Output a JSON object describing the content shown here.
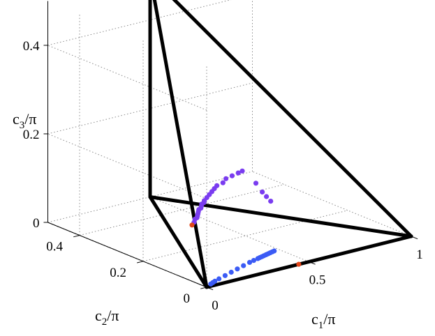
{
  "chart_data": {
    "type": "scatter",
    "title": "",
    "axes": {
      "x": {
        "label_main": "c",
        "label_sub": "1",
        "label_tail": "/π",
        "ticks": [
          "0",
          "0.5",
          "1"
        ],
        "range": [
          0,
          1
        ]
      },
      "y": {
        "label_main": "c",
        "label_sub": "2",
        "label_tail": "/π",
        "ticks": [
          "0",
          "0.2",
          "0.4"
        ],
        "range": [
          0,
          0.5
        ]
      },
      "z": {
        "label_main": "c",
        "label_sub": "3",
        "label_tail": "/π",
        "ticks": [
          "0",
          "0.2",
          "0.4"
        ],
        "range": [
          0,
          0.5
        ]
      }
    },
    "grid": true,
    "tetrahedron_vertices": [
      [
        0,
        0,
        0
      ],
      [
        1,
        0,
        0
      ],
      [
        0.5,
        0.5,
        0
      ],
      [
        0.5,
        0.5,
        0.5
      ]
    ],
    "series": [
      {
        "color": "#7a3cf0",
        "points": [
          [
            0.28,
            0.22,
            0.05
          ],
          [
            0.3,
            0.23,
            0.052
          ],
          [
            0.31,
            0.23,
            0.054
          ],
          [
            0.32,
            0.235,
            0.056
          ],
          [
            0.33,
            0.24,
            0.058
          ],
          [
            0.34,
            0.245,
            0.06
          ],
          [
            0.35,
            0.25,
            0.062
          ],
          [
            0.36,
            0.25,
            0.064
          ],
          [
            0.37,
            0.255,
            0.066
          ],
          [
            0.38,
            0.26,
            0.068
          ],
          [
            0.39,
            0.26,
            0.07
          ],
          [
            0.4,
            0.265,
            0.072
          ],
          [
            0.42,
            0.27,
            0.075
          ],
          [
            0.44,
            0.275,
            0.078
          ],
          [
            0.46,
            0.28,
            0.081
          ],
          [
            0.48,
            0.285,
            0.084
          ],
          [
            0.5,
            0.29,
            0.087
          ],
          [
            0.53,
            0.29,
            0.09
          ],
          [
            0.56,
            0.3,
            0.093
          ],
          [
            0.59,
            0.3,
            0.096
          ],
          [
            0.62,
            0.3,
            0.099
          ],
          [
            0.64,
            0.3,
            0.101
          ],
          [
            0.66,
            0.27,
            0.08
          ],
          [
            0.66,
            0.25,
            0.066
          ],
          [
            0.665,
            0.24,
            0.058
          ],
          [
            0.67,
            0.23,
            0.05
          ]
        ]
      },
      {
        "color": "#3b5bf5",
        "points": [
          [
            0.02,
            0.0,
            0.005
          ],
          [
            0.03,
            0.0,
            0.007
          ],
          [
            0.04,
            0.0,
            0.009
          ],
          [
            0.06,
            0.0,
            0.012
          ],
          [
            0.09,
            0.0,
            0.016
          ],
          [
            0.12,
            0.0,
            0.02
          ],
          [
            0.15,
            0.0,
            0.024
          ],
          [
            0.18,
            0.0,
            0.028
          ],
          [
            0.21,
            0.0,
            0.032
          ],
          [
            0.23,
            0.0,
            0.034
          ],
          [
            0.25,
            0.0,
            0.036
          ],
          [
            0.26,
            0.0,
            0.037
          ],
          [
            0.27,
            0.0,
            0.038
          ],
          [
            0.28,
            0.0,
            0.039
          ],
          [
            0.29,
            0.0,
            0.04
          ],
          [
            0.3,
            0.0,
            0.041
          ],
          [
            0.31,
            0.0,
            0.042
          ],
          [
            0.32,
            0.0,
            0.043
          ],
          [
            0.33,
            0.0,
            0.044
          ]
        ]
      },
      {
        "color": "#e2461a",
        "points": [
          [
            0.27,
            0.22,
            0.045
          ],
          [
            0.45,
            0.0,
            0.0
          ]
        ]
      }
    ]
  }
}
